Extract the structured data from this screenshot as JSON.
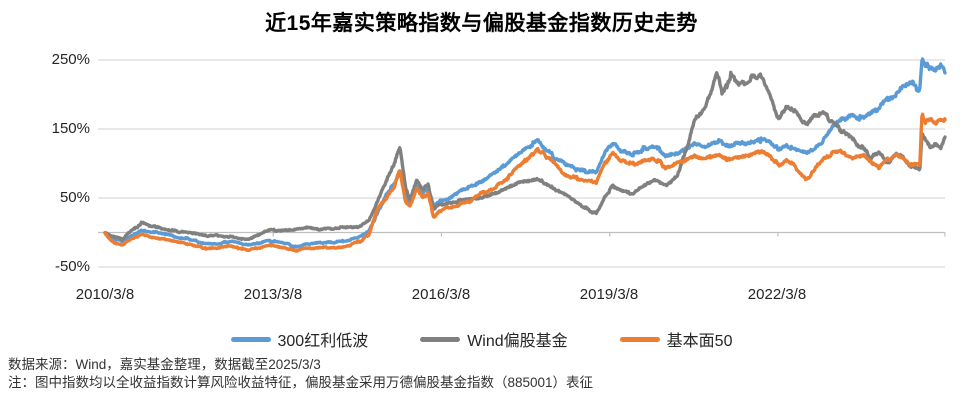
{
  "title": "近15年嘉实策略指数与偏股基金指数历史走势",
  "footer": {
    "source_line": "数据来源：Wind，嘉实基金整理，数据截至2025/3/3",
    "note_line": "注：图中指数均以全收益指数计算风险收益特征，偏股基金采用万德偏股基金指数（885001）表征"
  },
  "chart_data": {
    "type": "line",
    "title": "近15年嘉实策略指数与偏股基金指数历史走势",
    "xlabel": "",
    "ylabel": "",
    "grid": "horizontal",
    "legend_position": "bottom",
    "ylim": [
      -50,
      250
    ],
    "y_ticks": [
      250,
      150,
      50,
      -50
    ],
    "y_tick_labels": [
      "250%",
      "150%",
      "50%",
      "-50%"
    ],
    "x_range_years": [
      2010.19,
      2025.17
    ],
    "x_ticks_years": [
      2010.19,
      2013.19,
      2016.19,
      2019.19,
      2022.19
    ],
    "x_tick_labels": [
      "2010/3/8",
      "2013/3/8",
      "2016/3/8",
      "2019/3/8",
      "2022/3/8"
    ],
    "colors": {
      "grid": "#D9D9D9",
      "axis": "#BFBFBF"
    },
    "series": [
      {
        "name": "300红利低波",
        "color": "#5B9BD5",
        "points": [
          [
            2010.19,
            0
          ],
          [
            2010.3,
            -8
          ],
          [
            2010.5,
            -12
          ],
          [
            2010.65,
            -4
          ],
          [
            2010.85,
            3
          ],
          [
            2011.0,
            1
          ],
          [
            2011.2,
            -2
          ],
          [
            2011.45,
            -7
          ],
          [
            2011.7,
            -10
          ],
          [
            2011.95,
            -15
          ],
          [
            2012.2,
            -16
          ],
          [
            2012.45,
            -14
          ],
          [
            2012.75,
            -18
          ],
          [
            2012.95,
            -15
          ],
          [
            2013.1,
            -12
          ],
          [
            2013.35,
            -16
          ],
          [
            2013.6,
            -20
          ],
          [
            2013.8,
            -16
          ],
          [
            2014.0,
            -15
          ],
          [
            2014.3,
            -14
          ],
          [
            2014.55,
            -11
          ],
          [
            2014.75,
            -6
          ],
          [
            2014.9,
            2
          ],
          [
            2015.05,
            30
          ],
          [
            2015.2,
            55
          ],
          [
            2015.35,
            70
          ],
          [
            2015.45,
            87
          ],
          [
            2015.55,
            50
          ],
          [
            2015.63,
            40
          ],
          [
            2015.75,
            70
          ],
          [
            2015.85,
            58
          ],
          [
            2015.95,
            64
          ],
          [
            2016.05,
            40
          ],
          [
            2016.15,
            45
          ],
          [
            2016.3,
            50
          ],
          [
            2016.5,
            58
          ],
          [
            2016.7,
            66
          ],
          [
            2016.9,
            75
          ],
          [
            2017.1,
            85
          ],
          [
            2017.3,
            95
          ],
          [
            2017.5,
            110
          ],
          [
            2017.7,
            122
          ],
          [
            2017.9,
            134
          ],
          [
            2018.05,
            122
          ],
          [
            2018.2,
            112
          ],
          [
            2018.4,
            97
          ],
          [
            2018.6,
            93
          ],
          [
            2018.8,
            90
          ],
          [
            2018.95,
            88
          ],
          [
            2019.1,
            115
          ],
          [
            2019.25,
            129
          ],
          [
            2019.4,
            118
          ],
          [
            2019.6,
            115
          ],
          [
            2019.8,
            120
          ],
          [
            2020.0,
            124
          ],
          [
            2020.2,
            112
          ],
          [
            2020.4,
            116
          ],
          [
            2020.55,
            124
          ],
          [
            2020.7,
            128
          ],
          [
            2020.9,
            124
          ],
          [
            2021.1,
            132
          ],
          [
            2021.3,
            126
          ],
          [
            2021.5,
            129
          ],
          [
            2021.7,
            133
          ],
          [
            2021.9,
            136
          ],
          [
            2022.05,
            128
          ],
          [
            2022.2,
            120
          ],
          [
            2022.35,
            127
          ],
          [
            2022.5,
            121
          ],
          [
            2022.7,
            115
          ],
          [
            2022.85,
            122
          ],
          [
            2023.0,
            133
          ],
          [
            2023.15,
            152
          ],
          [
            2023.3,
            163
          ],
          [
            2023.5,
            172
          ],
          [
            2023.7,
            167
          ],
          [
            2023.85,
            172
          ],
          [
            2024.0,
            180
          ],
          [
            2024.15,
            192
          ],
          [
            2024.3,
            200
          ],
          [
            2024.45,
            212
          ],
          [
            2024.55,
            219
          ],
          [
            2024.65,
            207
          ],
          [
            2024.72,
            205
          ],
          [
            2024.76,
            250
          ],
          [
            2024.82,
            237
          ],
          [
            2024.9,
            243
          ],
          [
            2025.0,
            238
          ],
          [
            2025.1,
            242
          ],
          [
            2025.17,
            233
          ]
        ]
      },
      {
        "name": "Wind偏股基金",
        "color": "#808080",
        "points": [
          [
            2010.19,
            0
          ],
          [
            2010.3,
            -6
          ],
          [
            2010.5,
            -10
          ],
          [
            2010.65,
            4
          ],
          [
            2010.85,
            14
          ],
          [
            2011.0,
            10
          ],
          [
            2011.2,
            7
          ],
          [
            2011.45,
            2
          ],
          [
            2011.7,
            -1
          ],
          [
            2011.95,
            -5
          ],
          [
            2012.2,
            -5
          ],
          [
            2012.45,
            -7
          ],
          [
            2012.75,
            -10
          ],
          [
            2012.95,
            -2
          ],
          [
            2013.1,
            4
          ],
          [
            2013.35,
            2
          ],
          [
            2013.6,
            4
          ],
          [
            2013.8,
            8
          ],
          [
            2014.0,
            5
          ],
          [
            2014.3,
            7
          ],
          [
            2014.55,
            6
          ],
          [
            2014.75,
            9
          ],
          [
            2014.9,
            18
          ],
          [
            2015.05,
            45
          ],
          [
            2015.2,
            75
          ],
          [
            2015.35,
            100
          ],
          [
            2015.45,
            124
          ],
          [
            2015.55,
            65
          ],
          [
            2015.63,
            48
          ],
          [
            2015.75,
            78
          ],
          [
            2015.85,
            64
          ],
          [
            2015.95,
            70
          ],
          [
            2016.05,
            34
          ],
          [
            2016.15,
            40
          ],
          [
            2016.3,
            44
          ],
          [
            2016.5,
            45
          ],
          [
            2016.7,
            47
          ],
          [
            2016.9,
            50
          ],
          [
            2017.1,
            55
          ],
          [
            2017.3,
            60
          ],
          [
            2017.5,
            68
          ],
          [
            2017.7,
            73
          ],
          [
            2017.9,
            78
          ],
          [
            2018.05,
            70
          ],
          [
            2018.2,
            65
          ],
          [
            2018.4,
            55
          ],
          [
            2018.6,
            45
          ],
          [
            2018.8,
            34
          ],
          [
            2018.95,
            28
          ],
          [
            2019.1,
            52
          ],
          [
            2019.25,
            66
          ],
          [
            2019.4,
            60
          ],
          [
            2019.6,
            55
          ],
          [
            2019.8,
            68
          ],
          [
            2020.0,
            75
          ],
          [
            2020.2,
            68
          ],
          [
            2020.4,
            85
          ],
          [
            2020.55,
            120
          ],
          [
            2020.7,
            165
          ],
          [
            2020.9,
            185
          ],
          [
            2021.0,
            205
          ],
          [
            2021.1,
            237
          ],
          [
            2021.2,
            200
          ],
          [
            2021.35,
            225
          ],
          [
            2021.5,
            212
          ],
          [
            2021.7,
            222
          ],
          [
            2021.9,
            228
          ],
          [
            2022.05,
            200
          ],
          [
            2022.2,
            165
          ],
          [
            2022.35,
            185
          ],
          [
            2022.5,
            172
          ],
          [
            2022.7,
            152
          ],
          [
            2022.85,
            168
          ],
          [
            2023.0,
            172
          ],
          [
            2023.15,
            162
          ],
          [
            2023.3,
            150
          ],
          [
            2023.5,
            138
          ],
          [
            2023.7,
            122
          ],
          [
            2023.85,
            108
          ],
          [
            2024.0,
            116
          ],
          [
            2024.15,
            100
          ],
          [
            2024.3,
            112
          ],
          [
            2024.45,
            104
          ],
          [
            2024.55,
            95
          ],
          [
            2024.65,
            92
          ],
          [
            2024.72,
            90
          ],
          [
            2024.76,
            143
          ],
          [
            2024.82,
            133
          ],
          [
            2024.9,
            123
          ],
          [
            2025.0,
            128
          ],
          [
            2025.1,
            122
          ],
          [
            2025.17,
            139
          ]
        ]
      },
      {
        "name": "基本面50",
        "color": "#ED7D31",
        "points": [
          [
            2010.19,
            0
          ],
          [
            2010.3,
            -12
          ],
          [
            2010.5,
            -18
          ],
          [
            2010.65,
            -10
          ],
          [
            2010.85,
            -3
          ],
          [
            2011.0,
            -6
          ],
          [
            2011.2,
            -9
          ],
          [
            2011.45,
            -13
          ],
          [
            2011.7,
            -17
          ],
          [
            2011.95,
            -22
          ],
          [
            2012.2,
            -22
          ],
          [
            2012.45,
            -20
          ],
          [
            2012.75,
            -26
          ],
          [
            2012.95,
            -22
          ],
          [
            2013.1,
            -18
          ],
          [
            2013.35,
            -22
          ],
          [
            2013.6,
            -27
          ],
          [
            2013.8,
            -23
          ],
          [
            2014.0,
            -22
          ],
          [
            2014.3,
            -23
          ],
          [
            2014.55,
            -19
          ],
          [
            2014.75,
            -12
          ],
          [
            2014.9,
            -2
          ],
          [
            2015.05,
            35
          ],
          [
            2015.2,
            50
          ],
          [
            2015.35,
            68
          ],
          [
            2015.45,
            93
          ],
          [
            2015.55,
            45
          ],
          [
            2015.63,
            37
          ],
          [
            2015.75,
            64
          ],
          [
            2015.85,
            52
          ],
          [
            2015.95,
            57
          ],
          [
            2016.05,
            23
          ],
          [
            2016.15,
            32
          ],
          [
            2016.3,
            36
          ],
          [
            2016.5,
            40
          ],
          [
            2016.7,
            46
          ],
          [
            2016.9,
            55
          ],
          [
            2017.1,
            62
          ],
          [
            2017.3,
            74
          ],
          [
            2017.5,
            88
          ],
          [
            2017.7,
            103
          ],
          [
            2017.9,
            123
          ],
          [
            2018.05,
            108
          ],
          [
            2018.2,
            100
          ],
          [
            2018.4,
            82
          ],
          [
            2018.6,
            78
          ],
          [
            2018.8,
            74
          ],
          [
            2018.95,
            72
          ],
          [
            2019.1,
            100
          ],
          [
            2019.25,
            114
          ],
          [
            2019.4,
            104
          ],
          [
            2019.6,
            100
          ],
          [
            2019.8,
            104
          ],
          [
            2020.0,
            108
          ],
          [
            2020.2,
            94
          ],
          [
            2020.4,
            100
          ],
          [
            2020.55,
            106
          ],
          [
            2020.7,
            110
          ],
          [
            2020.9,
            106
          ],
          [
            2021.1,
            114
          ],
          [
            2021.3,
            107
          ],
          [
            2021.5,
            110
          ],
          [
            2021.7,
            114
          ],
          [
            2021.9,
            118
          ],
          [
            2022.05,
            110
          ],
          [
            2022.2,
            98
          ],
          [
            2022.35,
            106
          ],
          [
            2022.5,
            96
          ],
          [
            2022.7,
            78
          ],
          [
            2022.85,
            92
          ],
          [
            2023.0,
            106
          ],
          [
            2023.15,
            112
          ],
          [
            2023.3,
            118
          ],
          [
            2023.5,
            108
          ],
          [
            2023.7,
            112
          ],
          [
            2023.85,
            102
          ],
          [
            2024.0,
            96
          ],
          [
            2024.15,
            108
          ],
          [
            2024.3,
            112
          ],
          [
            2024.45,
            106
          ],
          [
            2024.55,
            98
          ],
          [
            2024.65,
            102
          ],
          [
            2024.72,
            100
          ],
          [
            2024.76,
            174
          ],
          [
            2024.82,
            160
          ],
          [
            2024.9,
            168
          ],
          [
            2025.0,
            160
          ],
          [
            2025.1,
            166
          ],
          [
            2025.17,
            162
          ]
        ]
      }
    ]
  }
}
